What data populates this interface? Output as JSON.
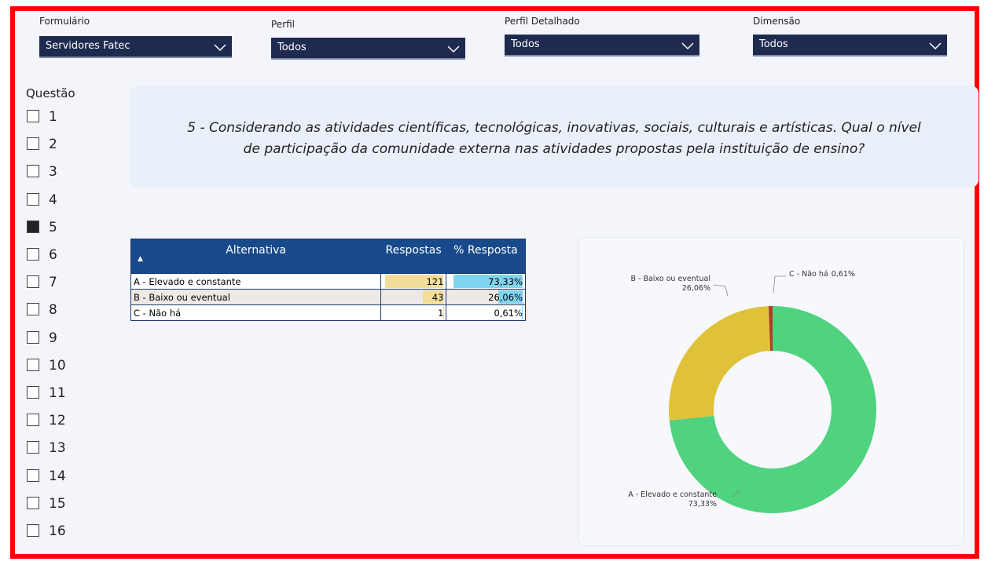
{
  "filters": [
    {
      "label": "Formulário",
      "value": "Servidores Fatec"
    },
    {
      "label": "Perfil",
      "value": "Todos"
    },
    {
      "label": "Perfil Detalhado",
      "value": "Todos"
    },
    {
      "label": "Dimensão",
      "value": "Todos"
    }
  ],
  "questions": {
    "label": "Questão",
    "items": [
      1,
      2,
      3,
      4,
      5,
      6,
      7,
      8,
      9,
      10,
      11,
      12,
      13,
      14,
      15,
      16
    ],
    "selected": 5
  },
  "question_text": [
    "5 - Considerando as atividades científicas, tecnológicas, inovativas, sociais, culturais e artísticas. Qual o nível",
    "de participação da comunidade externa nas atividades propostas pela instituição de ensino?"
  ],
  "table": {
    "columns": [
      "Alternativa",
      "Respostas",
      "% Resposta"
    ],
    "rows": [
      [
        "A - Elevado e constante",
        121,
        "73,33%"
      ],
      [
        "B - Baixo ou eventual",
        43,
        "26,06%"
      ],
      [
        "C - Não há",
        1,
        "0,61%"
      ]
    ]
  },
  "chart_data": {
    "type": "donut",
    "categories": [
      "A - Elevado e constante",
      "B - Baixo ou eventual",
      "C - Não há"
    ],
    "values": [
      73.33,
      26.06,
      0.61
    ],
    "value_labels": [
      "73,33%",
      "26,06%",
      "0,61%"
    ],
    "colors": [
      "#4fd37f",
      "#e0c13a",
      "#b3382c"
    ]
  }
}
